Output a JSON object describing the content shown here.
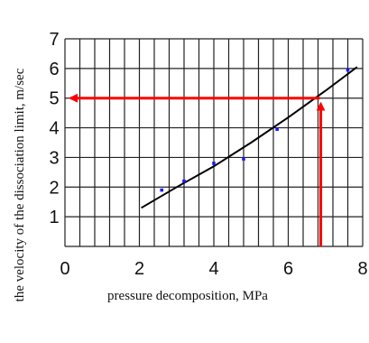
{
  "chart_data": {
    "type": "scatter",
    "xlabel": "pressure decomposition, MPa",
    "ylabel": "the velocity of the dissociation limit, m/sec",
    "xlim": [
      0,
      8
    ],
    "ylim": [
      0,
      7
    ],
    "x_ticks": [
      "0",
      "2",
      "4",
      "6",
      "8"
    ],
    "y_ticks": [
      "1",
      "2",
      "3",
      "4",
      "5",
      "6",
      "7"
    ],
    "grid": true,
    "series": [
      {
        "type": "scatter",
        "color": "#1a1aff",
        "points": [
          {
            "x": 2.6,
            "y": 1.9
          },
          {
            "x": 3.2,
            "y": 2.2
          },
          {
            "x": 4.0,
            "y": 2.8
          },
          {
            "x": 4.8,
            "y": 2.95
          },
          {
            "x": 5.7,
            "y": 3.95
          },
          {
            "x": 7.6,
            "y": 5.95
          }
        ]
      },
      {
        "type": "line",
        "color": "#000000",
        "points": [
          {
            "x": 2.05,
            "y": 1.3
          },
          {
            "x": 3.0,
            "y": 2.0
          },
          {
            "x": 4.0,
            "y": 2.7
          },
          {
            "x": 5.0,
            "y": 3.5
          },
          {
            "x": 6.0,
            "y": 4.35
          },
          {
            "x": 7.0,
            "y": 5.25
          },
          {
            "x": 7.85,
            "y": 6.05
          }
        ]
      }
    ],
    "annotation": {
      "color": "#ff0000",
      "x": 6.85,
      "y": 5.0
    }
  }
}
